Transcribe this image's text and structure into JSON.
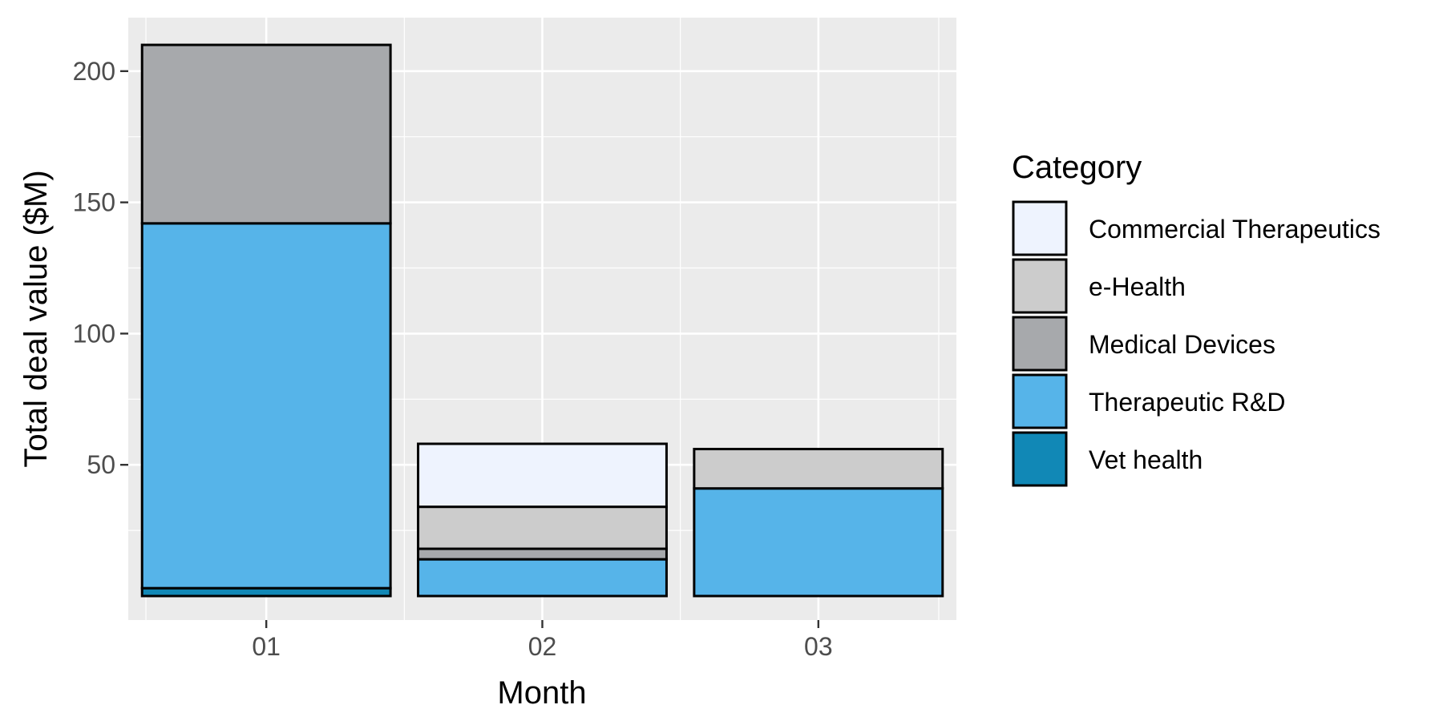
{
  "chart_data": {
    "type": "bar",
    "stacked": true,
    "xlabel": "Month",
    "ylabel": "Total deal value ($M)",
    "categories": [
      "01",
      "02",
      "03"
    ],
    "y_ticks": [
      50,
      100,
      150,
      200
    ],
    "ylim": [
      0,
      210
    ],
    "grid": true,
    "legend": {
      "title": "Category",
      "placement": "right",
      "entries": [
        "Commercial Therapeutics",
        "e-Health",
        "Medical Devices",
        "Therapeutic R&D",
        "Vet health"
      ]
    },
    "series": [
      {
        "name": "Vet health",
        "color": "#1188B6",
        "values": [
          3,
          0,
          0
        ]
      },
      {
        "name": "Therapeutic R&D",
        "color": "#56B4E9",
        "values": [
          139,
          14,
          41
        ]
      },
      {
        "name": "Medical Devices",
        "color": "#A7A9AC",
        "values": [
          68,
          4,
          0
        ]
      },
      {
        "name": "e-Health",
        "color": "#CCCCCC",
        "values": [
          0,
          16,
          15
        ]
      },
      {
        "name": "Commercial Therapeutics",
        "color": "#EEF3FE",
        "values": [
          0,
          24,
          0
        ]
      }
    ]
  }
}
